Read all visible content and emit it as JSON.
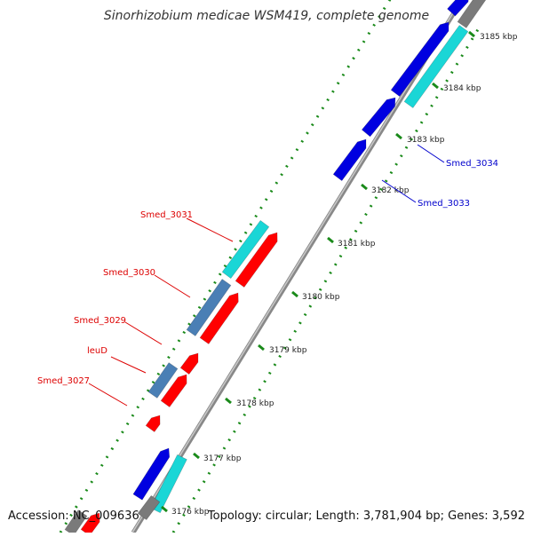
{
  "title": "Sinorhizobium medicae WSM419, complete genome",
  "accession": "Accession: NC_009636",
  "summary": "Topology: circular; Length: 3,781,904 bp; Genes: 3,592",
  "colors": {
    "backbone": "#8a8a8a",
    "tick": "#1a8a1a",
    "forward_gene": "#0000e0",
    "forward_cds": "#1ad6d6",
    "reverse_gene": "#ff0000",
    "reverse_cds": "#4a7fb5",
    "other": "#7a7a7a",
    "label_forward": "#0000cc",
    "label_reverse": "#dd0000"
  },
  "scale_ticks": [
    "3176 kbp",
    "3177 kbp",
    "3178 kbp",
    "3179 kbp",
    "3180 kbp",
    "3181 kbp",
    "3182 kbp",
    "3183 kbp",
    "3184 kbp",
    "3185 kbp"
  ],
  "gene_labels": {
    "forward": [
      "Smed_3034",
      "Smed_3033"
    ],
    "reverse": [
      "Smed_3031",
      "Smed_3030",
      "Smed_3029",
      "leuD",
      "Smed_3027"
    ]
  }
}
